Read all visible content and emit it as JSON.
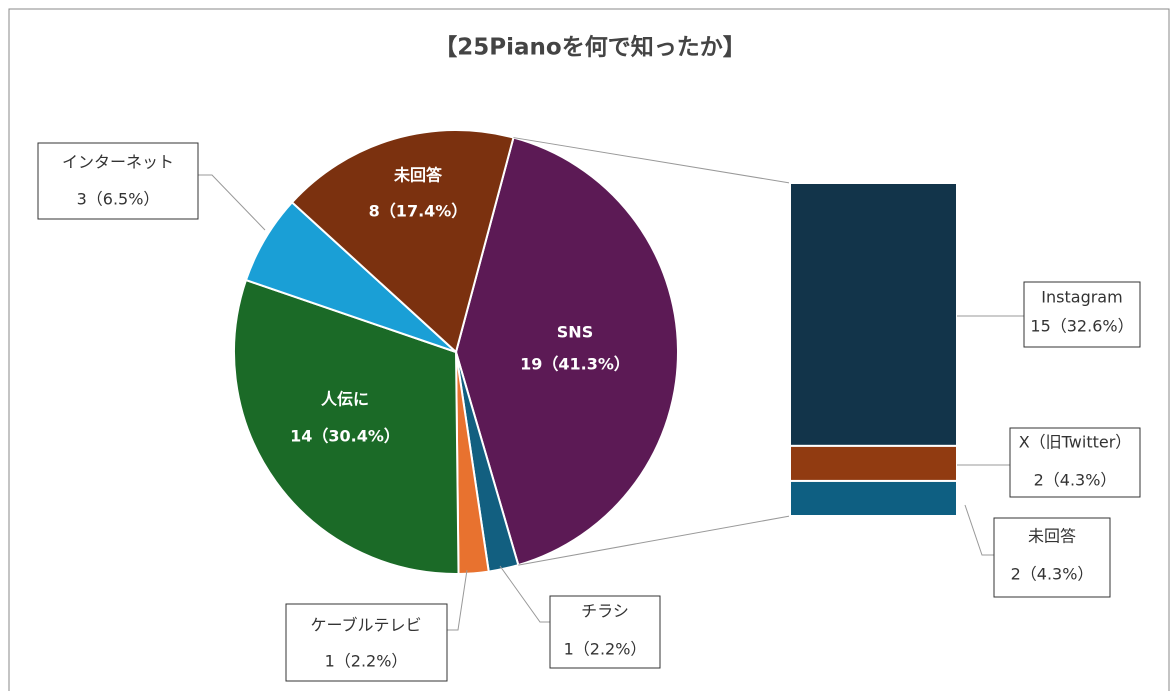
{
  "chart_data": {
    "type": "pie",
    "title": "【25Pianoを何で知ったか】",
    "categories": [
      "SNS",
      "チラシ",
      "ケーブルテレビ",
      "人伝に",
      "インターネット",
      "未回答"
    ],
    "values": [
      19,
      1,
      1,
      14,
      3,
      8
    ],
    "value_labels": [
      "19（41.3%）",
      "1（2.2%）",
      "1（2.2%）",
      "14（30.4%）",
      "3（6.5%）",
      "8（17.4%）"
    ],
    "colors": [
      "#5c1a55",
      "#125f80",
      "#e8722f",
      "#1b6a27",
      "#1a9fd6",
      "#7b310f"
    ],
    "breakdown": {
      "type": "bar",
      "categories": [
        "Instagram",
        "X（旧Twitter）",
        "未回答"
      ],
      "values": [
        15,
        2,
        2
      ],
      "value_labels": [
        "15（32.6%）",
        "2（4.3%）",
        "2（4.3%）"
      ],
      "colors": [
        "#12344a",
        "#913b11",
        "#0e5f82"
      ]
    }
  }
}
